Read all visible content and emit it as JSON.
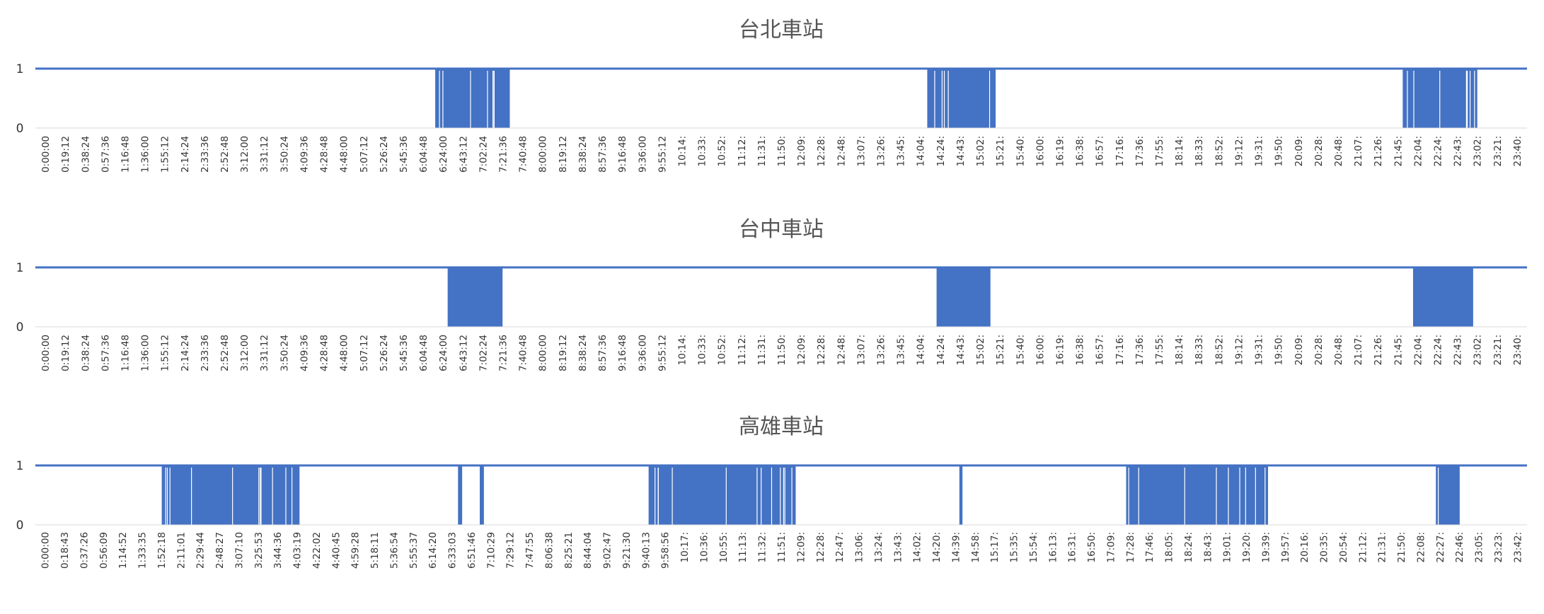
{
  "chart_data": [
    {
      "type": "area",
      "title": "台北車站",
      "series_color": "#4472C4",
      "ylim": [
        0,
        1
      ],
      "yticks": [
        "0",
        "1"
      ],
      "x_range": [
        "0:00:00",
        "23:59:59"
      ],
      "xticks": [
        "0:00:00",
        "0:19:12",
        "0:38:24",
        "0:57:36",
        "1:16:48",
        "1:36:00",
        "1:55:12",
        "2:14:24",
        "2:33:36",
        "2:52:48",
        "3:12:00",
        "3:31:12",
        "3:50:24",
        "4:09:36",
        "4:28:48",
        "4:48:00",
        "5:07:12",
        "5:26:24",
        "5:45:36",
        "6:04:48",
        "6:24:00",
        "6:43:12",
        "7:02:24",
        "7:21:36",
        "7:40:48",
        "8:00:00",
        "8:19:12",
        "8:38:24",
        "8:57:36",
        "9:16:48",
        "9:36:00",
        "9:55:12",
        "10:14:",
        "10:33:",
        "10:52:",
        "11:12:",
        "11:31:",
        "11:50:",
        "12:09:",
        "12:28:",
        "12:48:",
        "13:07:",
        "13:26:",
        "13:45:",
        "14:04:",
        "14:24:",
        "14:43:",
        "15:02:",
        "15:21:",
        "15:40:",
        "16:00:",
        "16:19:",
        "16:38:",
        "16:57:",
        "17:16:",
        "17:36:",
        "17:55:",
        "18:14:",
        "18:33:",
        "18:52:",
        "19:12:",
        "19:31:",
        "19:50:",
        "20:09:",
        "20:28:",
        "20:48:",
        "21:07:",
        "21:26:",
        "21:45:",
        "22:04:",
        "22:24:",
        "22:43:",
        "23:02:",
        "23:21:",
        "23:40:"
      ],
      "active_periods": [
        {
          "start": "6:26",
          "end": "7:38",
          "pattern": "dense"
        },
        {
          "start": "14:21",
          "end": "15:27",
          "pattern": "dense"
        },
        {
          "start": "22:00",
          "end": "23:12",
          "pattern": "dense"
        }
      ]
    },
    {
      "type": "area",
      "title": "台中車站",
      "series_color": "#4472C4",
      "ylim": [
        0,
        1
      ],
      "yticks": [
        "0",
        "1"
      ],
      "x_range": [
        "0:00:00",
        "23:59:59"
      ],
      "xticks": [
        "0:00:00",
        "0:19:12",
        "0:38:24",
        "0:57:36",
        "1:16:48",
        "1:36:00",
        "1:55:12",
        "2:14:24",
        "2:33:36",
        "2:52:48",
        "3:12:00",
        "3:31:12",
        "3:50:24",
        "4:09:36",
        "4:28:48",
        "4:48:00",
        "5:07:12",
        "5:26:24",
        "5:45:36",
        "6:04:48",
        "6:24:00",
        "6:43:12",
        "7:02:24",
        "7:21:36",
        "7:40:48",
        "8:00:00",
        "8:19:12",
        "8:38:24",
        "8:57:36",
        "9:16:48",
        "9:36:00",
        "9:55:12",
        "10:14:",
        "10:33:",
        "10:52:",
        "11:12:",
        "11:31:",
        "11:50:",
        "12:09:",
        "12:28:",
        "12:48:",
        "13:07:",
        "13:26:",
        "13:45:",
        "14:04:",
        "14:24:",
        "14:43:",
        "15:02:",
        "15:21:",
        "15:40:",
        "16:00:",
        "16:19:",
        "16:38:",
        "16:57:",
        "17:16:",
        "17:36:",
        "17:55:",
        "18:14:",
        "18:33:",
        "18:52:",
        "19:12:",
        "19:31:",
        "19:50:",
        "20:09:",
        "20:28:",
        "20:48:",
        "21:07:",
        "21:26:",
        "21:45:",
        "22:04:",
        "22:24:",
        "22:43:",
        "23:02:",
        "23:21:",
        "23:40:"
      ],
      "active_periods": [
        {
          "start": "6:38",
          "end": "7:31",
          "pattern": "solid"
        },
        {
          "start": "14:30",
          "end": "15:22",
          "pattern": "solid"
        },
        {
          "start": "22:10",
          "end": "23:08",
          "pattern": "solid"
        }
      ]
    },
    {
      "type": "area",
      "title": "高雄車站",
      "series_color": "#4472C4",
      "ylim": [
        0,
        1
      ],
      "yticks": [
        "0",
        "1"
      ],
      "x_range": [
        "0:00:00",
        "23:59:59"
      ],
      "xticks": [
        "0:00:00",
        "0:18:43",
        "0:37:26",
        "0:56:09",
        "1:14:52",
        "1:33:35",
        "1:52:18",
        "2:11:01",
        "2:29:44",
        "2:48:27",
        "3:07:10",
        "3:25:53",
        "3:44:36",
        "4:03:19",
        "4:22:02",
        "4:40:45",
        "4:59:28",
        "5:18:11",
        "5:36:54",
        "5:55:37",
        "6:14:20",
        "6:33:03",
        "6:51:46",
        "7:10:29",
        "7:29:12",
        "7:47:55",
        "8:06:38",
        "8:25:21",
        "8:44:04",
        "9:02:47",
        "9:21:30",
        "9:40:13",
        "9:58:56",
        "10:17:",
        "10:36:",
        "10:55:",
        "11:13:",
        "11:32:",
        "11:51:",
        "12:09:",
        "12:28:",
        "12:47:",
        "13:06:",
        "13:24:",
        "13:43:",
        "14:02:",
        "14:20:",
        "14:39:",
        "14:58:",
        "15:17:",
        "15:35:",
        "15:54:",
        "16:13:",
        "16:31:",
        "16:50:",
        "17:09:",
        "17:28:",
        "17:46:",
        "18:05:",
        "18:24:",
        "18:43:",
        "19:01:",
        "19:20:",
        "19:39:",
        "19:57:",
        "20:16:",
        "20:35:",
        "20:54:",
        "21:12:",
        "21:31:",
        "21:50:",
        "22:08:",
        "22:27:",
        "22:46:",
        "23:05:",
        "23:23:",
        "23:42:"
      ],
      "active_periods": [
        {
          "start": "2:02",
          "end": "4:15",
          "pattern": "dense"
        },
        {
          "start": "6:48",
          "end": "6:52",
          "pattern": "solid"
        },
        {
          "start": "7:09",
          "end": "7:13",
          "pattern": "solid"
        },
        {
          "start": "9:52",
          "end": "12:14",
          "pattern": "dense"
        },
        {
          "start": "14:52",
          "end": "14:55",
          "pattern": "solid"
        },
        {
          "start": "17:33",
          "end": "19:50",
          "pattern": "dense"
        },
        {
          "start": "22:32",
          "end": "22:55",
          "pattern": "dense"
        }
      ]
    }
  ]
}
